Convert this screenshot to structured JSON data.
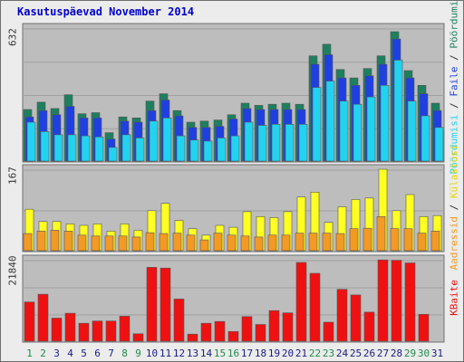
{
  "title": "Kasutuspäevad November 2014",
  "colors": {
    "background": "#ececec",
    "plot_background": "#bdbdbd",
    "grid": "#a0a0a0",
    "pages": "#1e7f5f",
    "files": "#1f3fe0",
    "hits": "#22d3f0",
    "visits": "#ffff22",
    "hosts": "#f39a24",
    "kbytes": "#ef1111",
    "x_weekend": "#1e8a4a",
    "x_weekday": "#1a1a8a"
  },
  "chart_data": [
    {
      "type": "bar",
      "title": "Kasutuspäevad November 2014",
      "categories": [
        "1",
        "2",
        "3",
        "4",
        "5",
        "6",
        "7",
        "8",
        "9",
        "10",
        "11",
        "12",
        "13",
        "14",
        "15",
        "16",
        "17",
        "18",
        "19",
        "20",
        "21",
        "22",
        "23",
        "24",
        "25",
        "26",
        "27",
        "28",
        "29",
        "30",
        "31"
      ],
      "weekend_days": [
        "1",
        "2",
        "8",
        "9",
        "15",
        "16",
        "22",
        "23",
        "29",
        "30"
      ],
      "ylim": [
        0,
        632
      ],
      "max_label": "632",
      "series": [
        {
          "name": "Pöördumisi",
          "color": "#1e7f5f",
          "values": [
            245,
            280,
            250,
            315,
            225,
            230,
            135,
            210,
            205,
            285,
            320,
            240,
            185,
            190,
            195,
            220,
            275,
            265,
            270,
            275,
            270,
            500,
            555,
            435,
            395,
            440,
            500,
            615,
            430,
            360,
            275
          ]
        },
        {
          "name": "Faile",
          "color": "#1f3fe0",
          "values": [
            210,
            240,
            220,
            260,
            205,
            205,
            105,
            190,
            185,
            240,
            290,
            215,
            160,
            160,
            165,
            200,
            250,
            245,
            245,
            245,
            245,
            460,
            505,
            395,
            360,
            405,
            460,
            580,
            395,
            320,
            240
          ]
        },
        {
          "name": "Pöördumisi",
          "color": "#22d3f0",
          "values": [
            185,
            140,
            125,
            125,
            120,
            115,
            65,
            125,
            110,
            190,
            205,
            120,
            100,
            95,
            110,
            120,
            185,
            170,
            175,
            175,
            175,
            350,
            380,
            285,
            270,
            305,
            360,
            480,
            285,
            215,
            160
          ]
        }
      ]
    },
    {
      "type": "bar",
      "categories": [
        "1",
        "2",
        "3",
        "4",
        "5",
        "6",
        "7",
        "8",
        "9",
        "10",
        "11",
        "12",
        "13",
        "14",
        "15",
        "16",
        "17",
        "18",
        "19",
        "20",
        "21",
        "22",
        "23",
        "24",
        "25",
        "26",
        "27",
        "28",
        "29",
        "30",
        "31"
      ],
      "ylim": [
        0,
        167
      ],
      "max_label": "167",
      "series": [
        {
          "name": "Külastusi",
          "color": "#ffff22",
          "values": [
            85,
            60,
            60,
            55,
            52,
            55,
            40,
            55,
            42,
            82,
            97,
            62,
            45,
            32,
            52,
            48,
            80,
            70,
            68,
            80,
            110,
            120,
            58,
            90,
            105,
            108,
            167,
            82,
            115,
            70,
            72
          ]
        },
        {
          "name": "Aadressid",
          "color": "#f39a24",
          "values": [
            35,
            40,
            42,
            40,
            32,
            30,
            30,
            30,
            28,
            37,
            35,
            36,
            32,
            22,
            36,
            32,
            30,
            28,
            32,
            32,
            36,
            36,
            36,
            35,
            45,
            46,
            70,
            45,
            45,
            36,
            40
          ]
        }
      ]
    },
    {
      "type": "bar",
      "categories": [
        "1",
        "2",
        "3",
        "4",
        "5",
        "6",
        "7",
        "8",
        "9",
        "10",
        "11",
        "12",
        "13",
        "14",
        "15",
        "16",
        "17",
        "18",
        "19",
        "20",
        "21",
        "22",
        "23",
        "24",
        "25",
        "26",
        "27",
        "28",
        "29",
        "30",
        "31"
      ],
      "ylim": [
        0,
        21840
      ],
      "max_label": "21840",
      "series": [
        {
          "name": "KBaite",
          "color": "#ef1111",
          "values": [
            10500,
            12600,
            6200,
            7500,
            4800,
            5400,
            5400,
            6700,
            2000,
            19800,
            19600,
            11300,
            1900,
            4800,
            5300,
            2600,
            6600,
            4500,
            8200,
            7600,
            21100,
            18200,
            5100,
            13900,
            12400,
            7800,
            21800,
            21700,
            21000,
            7200,
            0
          ]
        }
      ]
    }
  ],
  "legend": {
    "sep1": " / ",
    "sep2": " / "
  }
}
